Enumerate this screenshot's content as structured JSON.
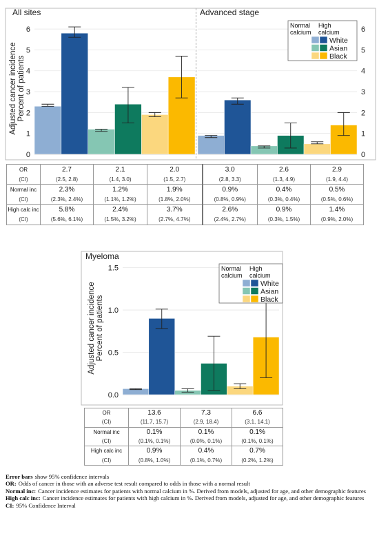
{
  "chart_data": [
    {
      "type": "bar",
      "title": "All sites",
      "ylabel": [
        "Adjusted cancer incidence",
        "Percent of patients"
      ],
      "ylim": [
        0,
        6.3
      ],
      "yticks": [
        0,
        1,
        2,
        3,
        4,
        5,
        6
      ],
      "grid": true,
      "series": [
        {
          "colors": [
            "#8eaed3",
            "#1f5597"
          ],
          "values": [
            2.3,
            5.8
          ],
          "errors": [
            [
              2.3,
              2.4
            ],
            [
              5.6,
              6.1
            ]
          ]
        },
        {
          "colors": [
            "#85c6b3",
            "#0e7a5e"
          ],
          "values": [
            1.2,
            2.4
          ],
          "errors": [
            [
              1.1,
              1.2
            ],
            [
              1.5,
              3.2
            ]
          ]
        },
        {
          "colors": [
            "#fbd77e",
            "#fbb900"
          ],
          "values": [
            1.9,
            3.7
          ],
          "errors": [
            [
              1.8,
              2.0
            ],
            [
              2.7,
              4.7
            ]
          ]
        }
      ]
    },
    {
      "type": "bar",
      "title": "Advanced stage",
      "ylim": [
        0,
        6.3
      ],
      "yticks": [
        0,
        1,
        2,
        3,
        4,
        5,
        6
      ],
      "grid": true,
      "legend": "top-right",
      "legend_headers": [
        "Normal calcium",
        "High calcium"
      ],
      "series": [
        {
          "name": "White",
          "colors": [
            "#8eaed3",
            "#1f5597"
          ],
          "values": [
            0.9,
            2.6
          ],
          "errors": [
            [
              0.8,
              0.9
            ],
            [
              2.4,
              2.7
            ]
          ]
        },
        {
          "name": "Asian",
          "colors": [
            "#85c6b3",
            "#0e7a5e"
          ],
          "values": [
            0.4,
            0.9
          ],
          "errors": [
            [
              0.3,
              0.4
            ],
            [
              0.3,
              1.5
            ]
          ]
        },
        {
          "name": "Black",
          "colors": [
            "#fbd77e",
            "#fbb900"
          ],
          "values": [
            0.5,
            1.4
          ],
          "errors": [
            [
              0.5,
              0.6
            ],
            [
              0.9,
              2.0
            ]
          ]
        }
      ]
    },
    {
      "type": "bar",
      "title": "Myeloma",
      "ylabel": [
        "Adjusted cancer incidence",
        "Percent of patients"
      ],
      "ylim": [
        0,
        1.57
      ],
      "yticks": [
        {
          "value": 0,
          "label": "0.0"
        },
        0.5,
        {
          "value": 1,
          "label": "1.0"
        },
        1.5
      ],
      "grid": true,
      "legend": "top-right",
      "legend_headers": [
        "Normal calcium",
        "High calcium"
      ],
      "series": [
        {
          "name": "White",
          "colors": [
            "#8eaed3",
            "#1f5597"
          ],
          "values": [
            0.07,
            0.9
          ],
          "errors": [
            [
              0.06,
              0.07
            ],
            [
              0.78,
              1.01
            ]
          ]
        },
        {
          "name": "Asian",
          "colors": [
            "#85c6b3",
            "#0e7a5e"
          ],
          "values": [
            0.05,
            0.37
          ],
          "errors": [
            [
              0.03,
              0.07
            ],
            [
              0.05,
              0.69
            ]
          ]
        },
        {
          "name": "Black",
          "colors": [
            "#fbd77e",
            "#fbb900"
          ],
          "values": [
            0.1,
            0.68
          ],
          "errors": [
            [
              0.07,
              0.13
            ],
            [
              0.2,
              1.16
            ]
          ]
        }
      ]
    }
  ],
  "tables": [
    {
      "rows": [
        [
          "OR",
          "2.7",
          "2.1",
          "2.0",
          "3.0",
          "2.6",
          "2.9"
        ],
        [
          "(CI)",
          "(2.5, 2.8)",
          "(1.4, 3.0)",
          "(1.5, 2.7)",
          "(2.8, 3.3)",
          "(1.3, 4.9)",
          "(1.9, 4.4)"
        ],
        [
          "Normal inc",
          "2.3%",
          "1.2%",
          "1.9%",
          "0.9%",
          "0.4%",
          "0.5%"
        ],
        [
          "(CI)",
          "(2.3%, 2.4%)",
          "(1.1%, 1.2%)",
          "(1.8%, 2.0%)",
          "(0.8%, 0.9%)",
          "(0.3%, 0.4%)",
          "(0.5%, 0.6%)"
        ],
        [
          "High calc inc",
          "5.8%",
          "2.4%",
          "3.7%",
          "2.6%",
          "0.9%",
          "1.4%"
        ],
        [
          "(CI)",
          "(5.6%, 6.1%)",
          "(1.5%, 3.2%)",
          "(2.7%, 4.7%)",
          "(2.4%, 2.7%)",
          "(0.3%, 1.5%)",
          "(0.9%, 2.0%)"
        ]
      ]
    },
    {
      "rows": [
        [
          "OR",
          "13.6",
          "7.3",
          "6.6"
        ],
        [
          "(CI)",
          "(11.7, 15.7)",
          "(2.9, 18.4)",
          "(3.1, 14.1)"
        ],
        [
          "Normal inc",
          "0.1%",
          "0.1%",
          "0.1%"
        ],
        [
          "(CI)",
          "(0.1%, 0.1%)",
          "(0.0%, 0.1%)",
          "(0.1%, 0.1%)"
        ],
        [
          "High calc inc",
          "0.9%",
          "0.4%",
          "0.7%"
        ],
        [
          "(CI)",
          "(0.8%, 1.0%)",
          "(0.1%, 0.7%)",
          "(0.2%, 1.2%)"
        ]
      ]
    }
  ],
  "notes": [
    {
      "term": "Error bars",
      "text": "show 95% confidence intervals"
    },
    {
      "term": "OR:",
      "text": "Odds of cancer in those with an adverse test result compared to odds in those with a normal result"
    },
    {
      "term": "Normal inc:",
      "text": "Cancer incidence estimates for patients with normal calcium in %. Derived from models, adjusted for age, and other demographic features"
    },
    {
      "term": "High calc inc:",
      "text": "Cancer incidence estimates for patients with high calcium in %. Derived from models, adjusted for age, and other demographic features"
    },
    {
      "term": "CI:",
      "text": "95% Confidence Interval"
    }
  ]
}
